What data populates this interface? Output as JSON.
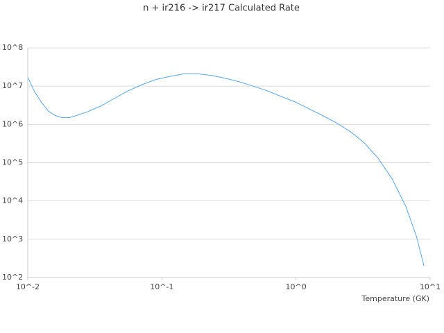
{
  "chart_data": {
    "type": "line",
    "title": "n + ir216 -> ir217 Calculated Rate",
    "x_label": "Temperature (GK)",
    "xscale": "log",
    "yscale": "log",
    "grid": true,
    "color": "#5aa5e8",
    "xlim": [
      0.01,
      10
    ],
    "xticks": [
      {
        "value": 0.01,
        "label": "10^-2"
      },
      {
        "value": 0.1,
        "label": "10^-1"
      },
      {
        "value": 1,
        "label": "10^0"
      },
      {
        "value": 10,
        "label": "10^1"
      }
    ],
    "ylim": [
      100,
      100000000
    ],
    "yticks": [
      {
        "value": 100,
        "label": "10^2"
      },
      {
        "value": 1000,
        "label": "10^3"
      },
      {
        "value": 10000,
        "label": "10^4"
      },
      {
        "value": 100000,
        "label": "10^5"
      },
      {
        "value": 1000000,
        "label": "10^6"
      },
      {
        "value": 10000000,
        "label": "10^7"
      },
      {
        "value": 100000000,
        "label": "10^8"
      }
    ],
    "x": [
      0.01,
      0.0113,
      0.0127,
      0.0143,
      0.0161,
      0.0181,
      0.0204,
      0.023,
      0.0275,
      0.0349,
      0.0443,
      0.0562,
      0.0714,
      0.0906,
      0.115,
      0.146,
      0.185,
      0.235,
      0.298,
      0.378,
      0.48,
      0.609,
      0.772,
      0.98,
      1.24,
      1.58,
      2.0,
      2.54,
      3.23,
      4.1,
      5.2,
      6.6,
      7.9,
      9.0
    ],
    "values": [
      17000000,
      6900000,
      3700000,
      2200000,
      1700000,
      1500000,
      1500000,
      1700000,
      2100000,
      3000000,
      4800000,
      7600000,
      11000000,
      15000000,
      18000000,
      21000000,
      21000000,
      19000000,
      16000000,
      13000000,
      10000000,
      7600000,
      5400000,
      3900000,
      2600000,
      1700000,
      1100000,
      650000,
      330000,
      130000,
      38000,
      7100,
      1200,
      200
    ]
  }
}
